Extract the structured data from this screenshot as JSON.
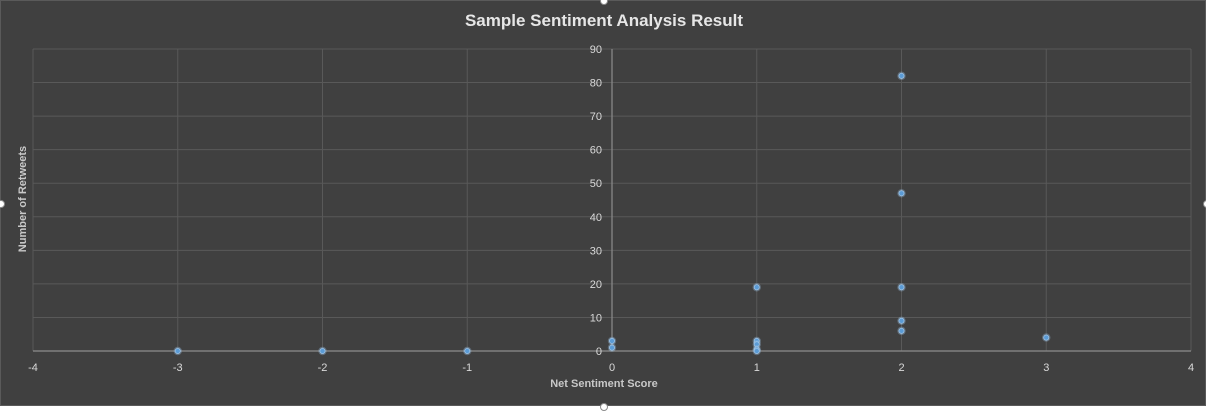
{
  "chart_data": {
    "type": "scatter",
    "title": "Sample Sentiment Analysis Result",
    "xlabel": "Net Sentiment Score",
    "ylabel": "Number of Retweets",
    "xlim": [
      -4,
      4
    ],
    "ylim": [
      0,
      90
    ],
    "x_ticks": [
      -4,
      -3,
      -2,
      -1,
      0,
      1,
      2,
      3,
      4
    ],
    "y_ticks": [
      0,
      10,
      20,
      30,
      40,
      50,
      60,
      70,
      80,
      90
    ],
    "grid": true,
    "legend": "none",
    "series": [
      {
        "name": "Number of Retweets",
        "points": [
          {
            "x": -3,
            "y": 0
          },
          {
            "x": -2,
            "y": 0
          },
          {
            "x": -1,
            "y": 0
          },
          {
            "x": 0,
            "y": 3
          },
          {
            "x": 0,
            "y": 1
          },
          {
            "x": 1,
            "y": 19
          },
          {
            "x": 1,
            "y": 3
          },
          {
            "x": 1,
            "y": 2
          },
          {
            "x": 1,
            "y": 0.5
          },
          {
            "x": 1,
            "y": 0
          },
          {
            "x": 2,
            "y": 82
          },
          {
            "x": 2,
            "y": 47
          },
          {
            "x": 2,
            "y": 19
          },
          {
            "x": 2,
            "y": 9
          },
          {
            "x": 2,
            "y": 6
          },
          {
            "x": 3,
            "y": 4
          }
        ]
      }
    ]
  },
  "colors": {
    "background": "#404040",
    "gridline": "#595959",
    "axis_line": "#8c8c8c",
    "tick_label": "#d9d9d9",
    "marker_fill": "#5b9bd5",
    "marker_glow": "#9dc3e6"
  }
}
